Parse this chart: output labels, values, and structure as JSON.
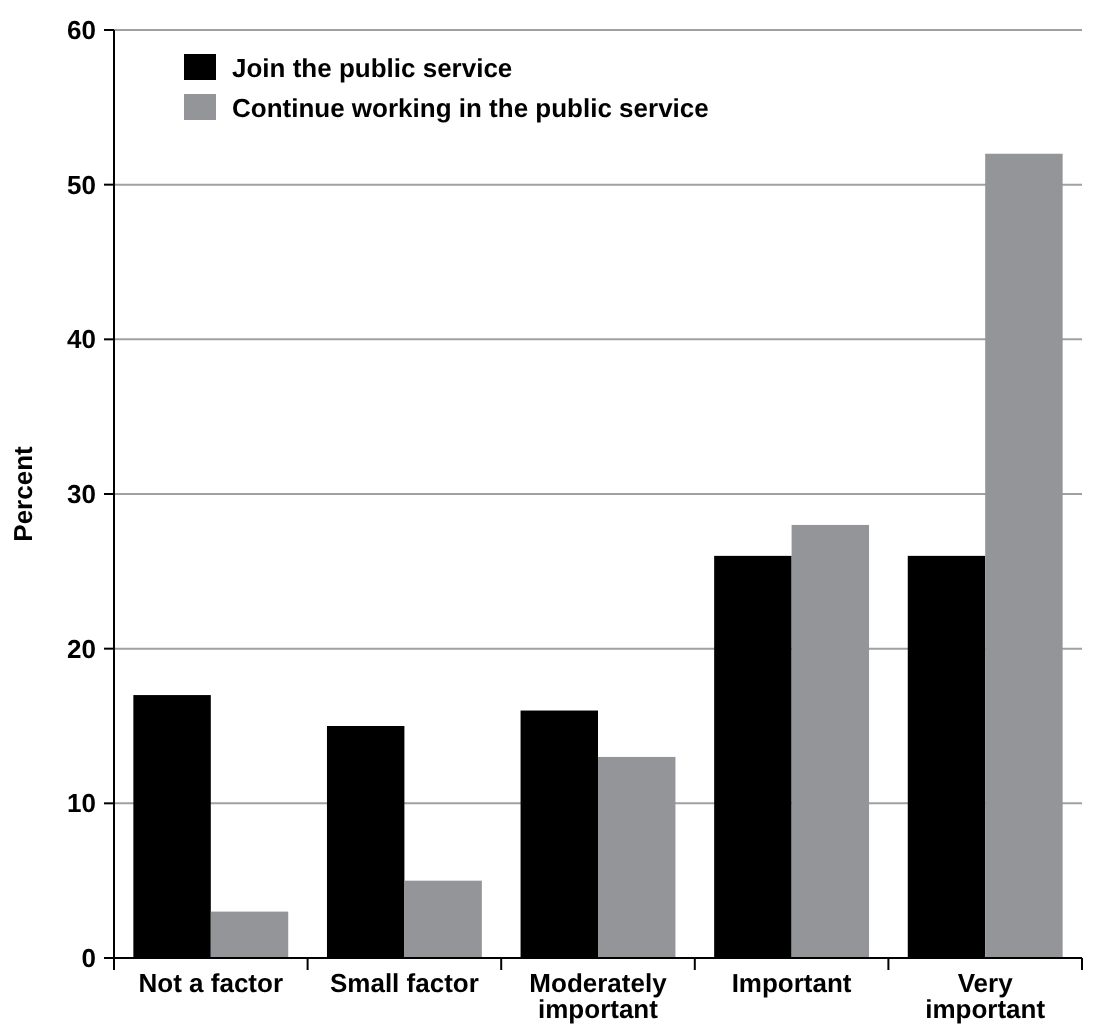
{
  "chart_data": {
    "type": "bar",
    "ylabel": "Percent",
    "categories": [
      "Not a factor",
      "Small factor",
      "Moderately important",
      "Important",
      "Very important"
    ],
    "series": [
      {
        "name": "Join the public service",
        "color": "#000000",
        "values": [
          17,
          15,
          16,
          26,
          26
        ]
      },
      {
        "name": "Continue working in the public service",
        "color": "#939598",
        "values": [
          3,
          5,
          13,
          28,
          52
        ]
      }
    ],
    "ylim": [
      0,
      60
    ],
    "yticks": [
      0,
      10,
      20,
      30,
      40,
      50,
      60
    ],
    "grid": "y",
    "legend": "top left"
  }
}
